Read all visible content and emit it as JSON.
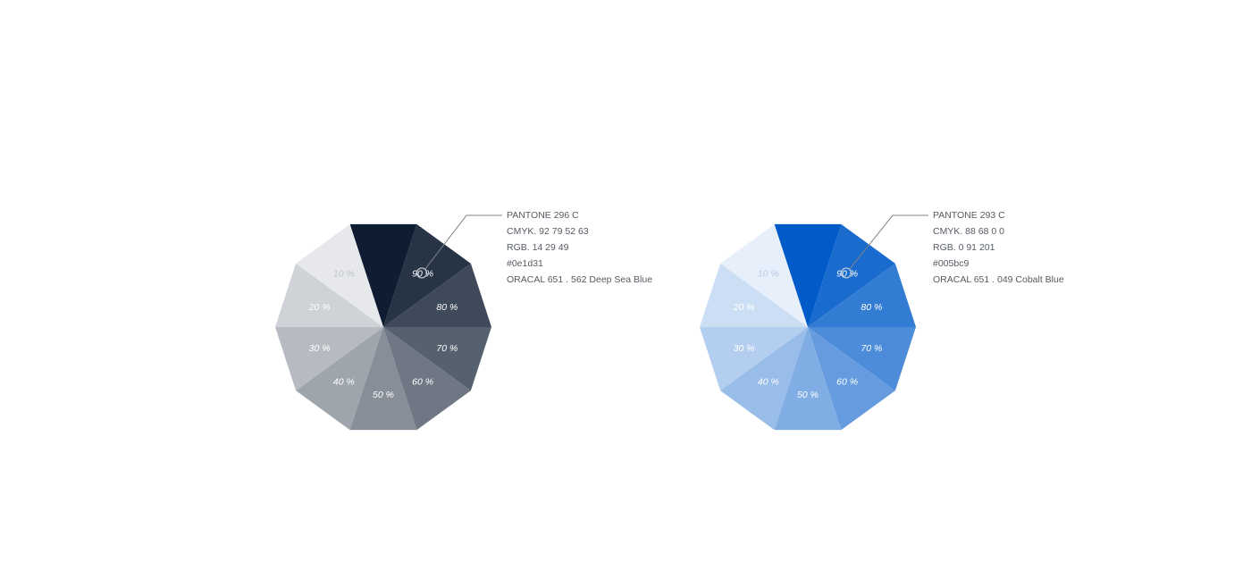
{
  "swatches": [
    {
      "id": "deep-sea-blue",
      "base_color": "#0e1d31",
      "tints": [
        {
          "label": "10 %",
          "color": "#e7e8eb"
        },
        {
          "label": "20 %",
          "color": "#cfd2d6"
        },
        {
          "label": "30 %",
          "color": "#b7bbc1"
        },
        {
          "label": "40 %",
          "color": "#9fa5ad"
        },
        {
          "label": "50 %",
          "color": "#878e98"
        },
        {
          "label": "60 %",
          "color": "#6e7783"
        },
        {
          "label": "70 %",
          "color": "#56616f"
        },
        {
          "label": "80 %",
          "color": "#3e4a5a"
        },
        {
          "label": "90 %",
          "color": "#263446"
        },
        {
          "label": "",
          "color": "#0e1d31"
        }
      ],
      "label_colors": {
        "light": "#ffffff",
        "lightest": "#c0c4ca"
      },
      "info": {
        "pantone": "PANTONE 296 C",
        "cmyk": "CMYK.  92  79  52  63",
        "rgb": "RGB. 14  29  49",
        "hex": "#0e1d31",
        "oracal": "ORACAL 651 . 562 Deep Sea Blue"
      }
    },
    {
      "id": "cobalt-blue",
      "base_color": "#005bc9",
      "tints": [
        {
          "label": "10 %",
          "color": "#e6effa"
        },
        {
          "label": "20 %",
          "color": "#ccdef4"
        },
        {
          "label": "30 %",
          "color": "#b3ceef"
        },
        {
          "label": "40 %",
          "color": "#99bde9"
        },
        {
          "label": "50 %",
          "color": "#80ade4"
        },
        {
          "label": "60 %",
          "color": "#669cdf"
        },
        {
          "label": "70 %",
          "color": "#4d8cd9"
        },
        {
          "label": "80 %",
          "color": "#337cd4"
        },
        {
          "label": "90 %",
          "color": "#1a6bce"
        },
        {
          "label": "",
          "color": "#005bc9"
        }
      ],
      "label_colors": {
        "light": "#ffffff",
        "lightest": "#b8cbe6"
      },
      "info": {
        "pantone": "PANTONE 293 C",
        "cmyk": "CMYK.  88  68  0  0",
        "rgb": "RGB. 0  91  201",
        "hex": "#005bc9",
        "oracal": "ORACAL 651 . 049 Cobalt Blue"
      }
    }
  ],
  "leader_line_color": "#7d828a"
}
